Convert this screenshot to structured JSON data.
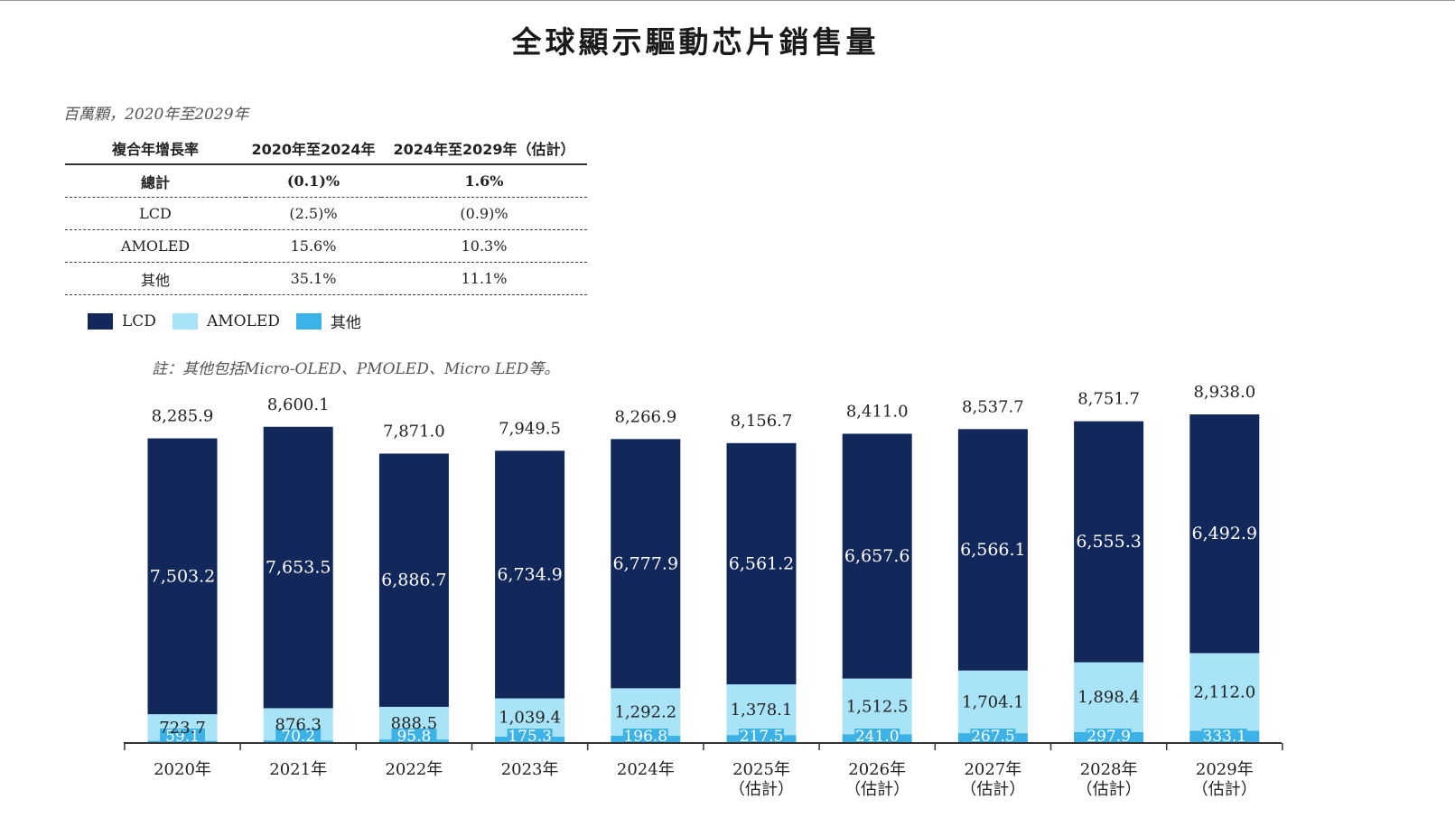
{
  "title": "全球顯示驅動芯片銷售量",
  "subtitle": "百萬顆，2020年至2029年",
  "cagr_table": {
    "headers": [
      "複合年增長率",
      "2020年至2024年",
      "2024年至2029年（估計）"
    ],
    "rows": [
      {
        "label": "總計",
        "v1": "(0.1)%",
        "v2": "1.6%"
      },
      {
        "label": "LCD",
        "v1": "(2.5)%",
        "v2": "(0.9)%"
      },
      {
        "label": "AMOLED",
        "v1": "15.6%",
        "v2": "10.3%"
      },
      {
        "label": "其他",
        "v1": "35.1%",
        "v2": "11.1%"
      }
    ]
  },
  "legend": [
    {
      "label": "LCD",
      "color": "#12275a"
    },
    {
      "label": "AMOLED",
      "color": "#a8e3f7"
    },
    {
      "label": "其他",
      "color": "#3db2e6"
    }
  ],
  "note": "註：其他包括Micro-OLED、PMOLED、Micro LED等。",
  "chart_data": {
    "type": "bar",
    "stacked": true,
    "categories": [
      "2020年",
      "2021年",
      "2022年",
      "2023年",
      "2024年",
      "2025年",
      "2026年",
      "2027年",
      "2028年",
      "2029年"
    ],
    "category_sublabels": [
      "",
      "",
      "",
      "",
      "",
      "（估計）",
      "（估計）",
      "（估計）",
      "（估計）",
      "（估計）"
    ],
    "series": [
      {
        "name": "其他",
        "color": "#3db2e6",
        "values": [
          59.1,
          70.2,
          95.8,
          175.3,
          196.8,
          217.5,
          241.0,
          267.5,
          297.9,
          333.1
        ],
        "labels": [
          "59.1",
          "70.2",
          "95.8",
          "175.3",
          "196.8",
          "217.5",
          "241.0",
          "267.5",
          "297.9",
          "333.1"
        ]
      },
      {
        "name": "AMOLED",
        "color": "#a8e3f7",
        "values": [
          723.7,
          876.3,
          888.5,
          1039.4,
          1292.2,
          1378.1,
          1512.5,
          1704.1,
          1898.4,
          2112.0
        ],
        "labels": [
          "723.7",
          "876.3",
          "888.5",
          "1,039.4",
          "1,292.2",
          "1,378.1",
          "1,512.5",
          "1,704.1",
          "1,898.4",
          "2,112.0"
        ]
      },
      {
        "name": "LCD",
        "color": "#12275a",
        "values": [
          7503.2,
          7653.5,
          6886.7,
          6734.9,
          6777.9,
          6561.2,
          6657.6,
          6566.1,
          6555.3,
          6492.9
        ],
        "labels": [
          "7,503.2",
          "7,653.5",
          "6,886.7",
          "6,734.9",
          "6,777.9",
          "6,561.2",
          "6,657.6",
          "6,566.1",
          "6,555.3",
          "6,492.9"
        ]
      }
    ],
    "totals": [
      8285.9,
      8600.1,
      7871.0,
      7949.5,
      8266.9,
      8156.7,
      8411.0,
      8537.7,
      8751.7,
      8938.0
    ],
    "total_labels": [
      "8,285.9",
      "8,600.1",
      "7,871.0",
      "7,949.5",
      "8,266.9",
      "8,156.7",
      "8,411.0",
      "8,537.7",
      "8,751.7",
      "8,938.0"
    ],
    "ylim": [
      0,
      9000
    ],
    "xlabel": "",
    "ylabel": ""
  }
}
